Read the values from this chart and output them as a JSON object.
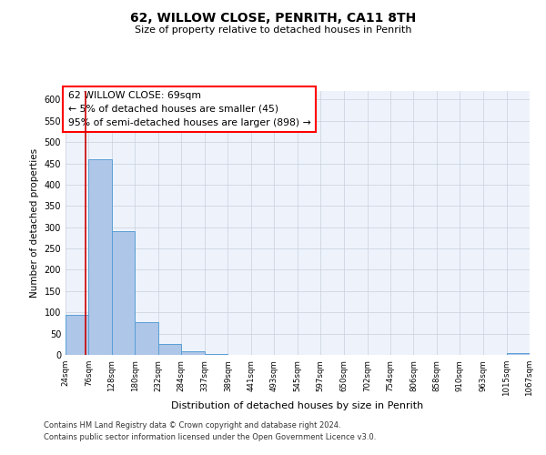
{
  "title": "62, WILLOW CLOSE, PENRITH, CA11 8TH",
  "subtitle": "Size of property relative to detached houses in Penrith",
  "xlabel": "Distribution of detached houses by size in Penrith",
  "ylabel": "Number of detached properties",
  "bar_color": "#aec6e8",
  "bar_edge_color": "#5a9fd4",
  "bg_color": "#eef3fb",
  "grid_color": "#c8d0dc",
  "annotation_title": "62 WILLOW CLOSE: 69sqm",
  "annotation_line1": "← 5% of detached houses are smaller (45)",
  "annotation_line2": "95% of semi-detached houses are larger (898) →",
  "redline_x": 69,
  "bin_edges": [
    24,
    76,
    128,
    180,
    232,
    284,
    337,
    389,
    441,
    493,
    545,
    597,
    650,
    702,
    754,
    806,
    858,
    910,
    963,
    1015,
    1067
  ],
  "bin_counts": [
    95,
    460,
    290,
    78,
    25,
    8,
    2,
    0,
    0,
    1,
    0,
    0,
    0,
    0,
    0,
    0,
    0,
    0,
    0,
    5
  ],
  "ylim": [
    0,
    620
  ],
  "yticks": [
    0,
    50,
    100,
    150,
    200,
    250,
    300,
    350,
    400,
    450,
    500,
    550,
    600
  ],
  "footer1": "Contains HM Land Registry data © Crown copyright and database right 2024.",
  "footer2": "Contains public sector information licensed under the Open Government Licence v3.0."
}
